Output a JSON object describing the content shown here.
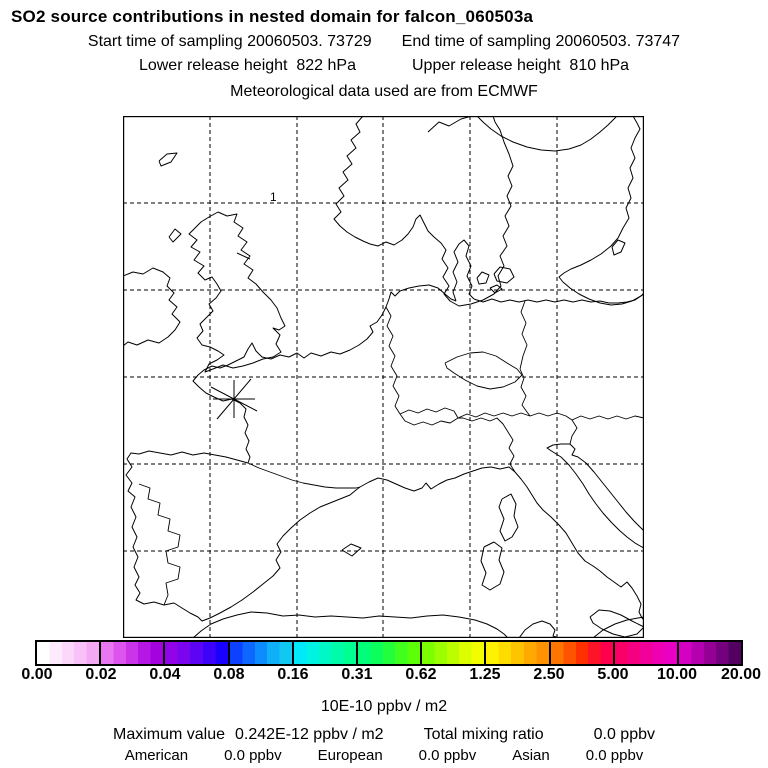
{
  "header": {
    "title": "SO2 source contributions in nested domain for falcon_060503a",
    "start_time": "Start time of sampling 20060503. 73729",
    "end_time": "End time of sampling 20060503. 73747",
    "lower_release": "Lower release height  822 hPa",
    "upper_release": "Upper release height  810 hPa",
    "met_source": "Meteorological data used are from ECMWF"
  },
  "map": {
    "contour_label": "1",
    "marker": "release-point-asterisk"
  },
  "colorbar": {
    "unit_label": "10E-10 ppbv / m2",
    "ticks": [
      "0.00",
      "0.02",
      "0.04",
      "0.08",
      "0.16",
      "0.31",
      "0.62",
      "1.25",
      "2.50",
      "5.00",
      "10.00",
      "20.00"
    ],
    "segments": [
      [
        "#ffffff",
        "#fdeafd",
        "#fbd8fb",
        "#f8c2f8",
        "#f3aaf3"
      ],
      [
        "#ea77f2",
        "#dd55ee",
        "#cb35e9",
        "#b517e4",
        "#a403e0"
      ],
      [
        "#9204e8",
        "#7a05ee",
        "#5e04f4",
        "#3c02fa",
        "#1a01fd"
      ],
      [
        "#0b41ff",
        "#0c68ff",
        "#0d8cff",
        "#0fb0f8",
        "#10c8f2"
      ],
      [
        "#00e8fa",
        "#00f2e2",
        "#00f8c6",
        "#00fcaa",
        "#00fe92"
      ],
      [
        "#00fe7a",
        "#0cfe5c",
        "#22fe3c",
        "#40fe1e",
        "#5cfe08"
      ],
      [
        "#7cfe00",
        "#9cfe00",
        "#bcfe00",
        "#dcfe00",
        "#f2fe00"
      ],
      [
        "#fef200",
        "#fedc00",
        "#fec400",
        "#feaa00",
        "#fe9200"
      ],
      [
        "#fe7600",
        "#fe5400",
        "#fe3000",
        "#fe1428",
        "#fe004c"
      ],
      [
        "#fa0066",
        "#f60082",
        "#f2009a",
        "#ee00b2",
        "#e800c4"
      ],
      [
        "#d400c4",
        "#b400ae",
        "#940096",
        "#74007e",
        "#540062"
      ]
    ]
  },
  "stats": {
    "maximum_value_label": "Maximum value",
    "maximum_value": "0.242E-12 ppbv / m2",
    "total_mixing_ratio_label": "Total mixing ratio",
    "total_mixing_ratio": "0.0 ppbv",
    "sources": [
      {
        "name": "American",
        "value": "0.0 ppbv"
      },
      {
        "name": "European",
        "value": "0.0 ppbv"
      },
      {
        "name": "Asian",
        "value": "0.0 ppbv"
      }
    ]
  },
  "chart_data": {
    "type": "heatmap",
    "title": "SO2 source contributions in nested domain for falcon_060503a",
    "colorbar_tick_values": [
      0.0,
      0.02,
      0.04,
      0.08,
      0.16,
      0.31,
      0.62,
      1.25,
      2.5,
      5.0,
      10.0,
      20.0
    ],
    "colorbar_unit": "10E-10 ppbv / m2",
    "start_time_of_sampling": "20060503. 73729",
    "end_time_of_sampling": "20060503. 73747",
    "lower_release_height_hPa": 822,
    "upper_release_height_hPa": 810,
    "meteorological_data_source": "ECMWF",
    "maximum_value": "0.242E-12 ppbv / m2",
    "total_mixing_ratio_ppbv": 0.0,
    "source_contributions_ppbv": {
      "American": 0.0,
      "European": 0.0,
      "Asian": 0.0
    },
    "map_overlay": "European coastlines with dashed lat/lon grid; release point marked by asterisk over NW France; no concentration field above lowest color level"
  }
}
